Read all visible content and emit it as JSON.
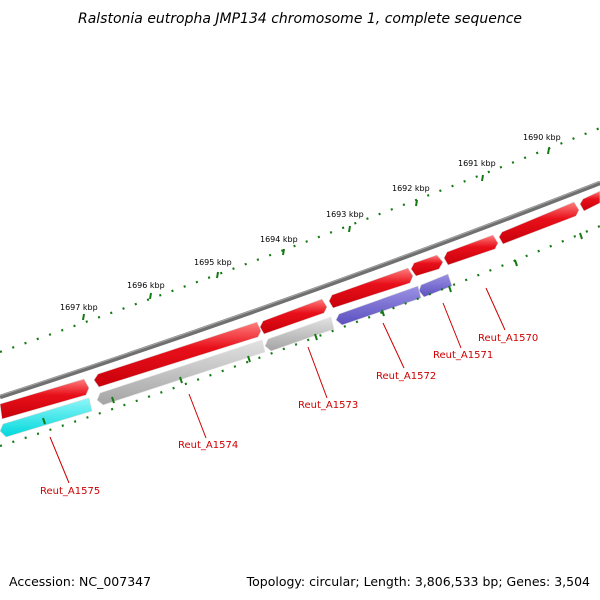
{
  "title": "Ralstonia eutropha JMP134 chromosome 1, complete sequence",
  "accession": "Accession: NC_007347",
  "topology": "Topology: circular; Length: 3,806,533 bp; Genes: 3,504",
  "kbp_labels": [
    {
      "id": "1690",
      "text": "1690 kbp"
    },
    {
      "id": "1691",
      "text": "1691 kbp"
    },
    {
      "id": "1692",
      "text": "1692 kbp"
    },
    {
      "id": "1693",
      "text": "1693 kbp"
    },
    {
      "id": "1694",
      "text": "1694 kbp"
    },
    {
      "id": "1695",
      "text": "1695 kbp"
    },
    {
      "id": "1696",
      "text": "1696 kbp"
    },
    {
      "id": "1697",
      "text": "1697 kbp"
    }
  ],
  "genes": [
    {
      "id": "Reut_A1570",
      "label": "Reut_A1570"
    },
    {
      "id": "Reut_A1571",
      "label": "Reut_A1571"
    },
    {
      "id": "Reut_A1572",
      "label": "Reut_A1572"
    },
    {
      "id": "Reut_A1573",
      "label": "Reut_A1573"
    },
    {
      "id": "Reut_A1574",
      "label": "Reut_A1574"
    },
    {
      "id": "Reut_A1575",
      "label": "Reut_A1575"
    }
  ],
  "colors": {
    "backbone": "#7a7a7a",
    "feature_red": "#e8101a",
    "feature_gray": "#b4b4b4",
    "feature_blue": "#7468d0",
    "feature_cyan": "#18e8ec",
    "tick": "#157a15",
    "label": "#cc0000"
  }
}
